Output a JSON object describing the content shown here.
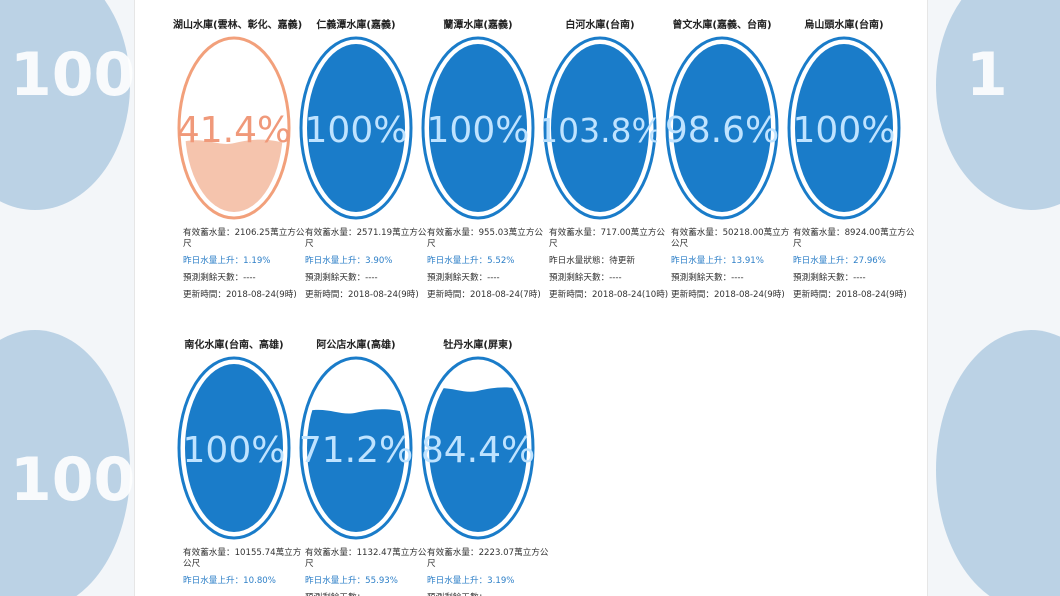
{
  "labels": {
    "storage_prefix": "有效蓄水量：",
    "storage_unit": "萬立方公尺",
    "change_prefix": "昨日水量上升：",
    "forecast_prefix": "預測剩餘天數：",
    "updated_prefix": "更新時間："
  },
  "reservoirs": [
    {
      "name": "湖山水庫(雲林、彰化、嘉義)",
      "percent": 41.4,
      "percent_text": "41.4%",
      "fill": 0.41,
      "theme": "orange",
      "storage": "2106.25",
      "change": "1.19%",
      "forecast": "----",
      "updated": "2018-08-24(9時)"
    },
    {
      "name": "仁義潭水庫(嘉義)",
      "percent": 100,
      "percent_text": "100%",
      "fill": 1.0,
      "theme": "blue",
      "storage": "2571.19",
      "change": "3.90%",
      "forecast": "----",
      "updated": "2018-08-24(9時)"
    },
    {
      "name": "蘭潭水庫(嘉義)",
      "percent": 100,
      "percent_text": "100%",
      "fill": 1.0,
      "theme": "blue",
      "storage": "955.03",
      "change": "5.52%",
      "forecast": "----",
      "updated": "2018-08-24(7時)"
    },
    {
      "name": "白河水庫(台南)",
      "percent": 103.8,
      "percent_text": "103.8%",
      "fill": 1.0,
      "theme": "blue",
      "storage": "717.00",
      "status": "昨日水量狀態：待更新",
      "forecast": "----",
      "updated": "2018-08-24(10時)"
    },
    {
      "name": "曾文水庫(嘉義、台南)",
      "percent": 98.6,
      "percent_text": "98.6%",
      "fill": 1.0,
      "theme": "blue",
      "storage": "50218.00",
      "change": "13.91%",
      "forecast": "----",
      "updated": "2018-08-24(9時)"
    },
    {
      "name": "烏山頭水庫(台南)",
      "percent": 100,
      "percent_text": "100%",
      "fill": 1.0,
      "theme": "blue",
      "storage": "8924.00",
      "change": "27.96%",
      "forecast": "----",
      "updated": "2018-08-24(9時)"
    },
    {
      "name": "南化水庫(台南、高雄)",
      "percent": 100,
      "percent_text": "100%",
      "fill": 1.0,
      "theme": "blue",
      "storage": "10155.74",
      "change": "10.80%",
      "forecast": "",
      "updated": ""
    },
    {
      "name": "阿公店水庫(高雄)",
      "percent": 71.2,
      "percent_text": "71.2%",
      "fill": 0.71,
      "theme": "blue",
      "storage": "1132.47",
      "change": "55.93%",
      "forecast": "----",
      "updated": ""
    },
    {
      "name": "牡丹水庫(屏東)",
      "percent": 84.4,
      "percent_text": "84.4%",
      "fill": 0.84,
      "theme": "blue",
      "storage": "2223.07",
      "change": "3.19%",
      "forecast": "----",
      "updated": ""
    }
  ],
  "colors": {
    "blue": "#1a7cc9",
    "blue_ring": "#1a7cc9",
    "blue_text": "#bfe3ff",
    "orange": "#f2a07b",
    "orange_fill": "#f5c4ad",
    "orange_text": "#f0997a"
  },
  "background": {
    "left_text": "100",
    "right_text": "1"
  }
}
